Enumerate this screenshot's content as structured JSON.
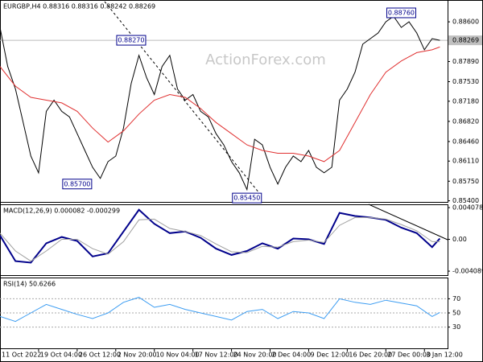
{
  "chart_data": [
    {
      "type": "line",
      "title": "EURGBP,H4 0.88316 0.88316 0.88242 0.88269",
      "watermark": "ActionForex.com",
      "x": [
        0,
        2,
        4,
        6,
        8,
        10,
        12,
        14,
        16,
        18,
        20,
        22,
        24,
        26,
        28,
        30,
        32,
        34,
        36,
        38,
        40,
        42,
        44,
        46,
        48,
        50,
        52,
        54,
        56,
        58,
        60,
        62,
        64,
        66,
        68,
        70,
        72,
        74,
        76,
        78,
        80,
        82,
        84,
        86,
        88,
        90,
        92,
        94,
        96,
        98,
        100,
        102,
        104,
        106,
        108,
        110,
        112,
        114
      ],
      "series": [
        {
          "color": "#000000",
          "values": [
            0.885,
            0.878,
            0.874,
            0.868,
            0.862,
            0.859,
            0.87,
            0.872,
            0.87,
            0.869,
            0.866,
            0.863,
            0.86,
            0.858,
            0.861,
            0.862,
            0.867,
            0.875,
            0.88,
            0.876,
            0.873,
            0.878,
            0.88,
            0.874,
            0.872,
            0.873,
            0.87,
            0.869,
            0.866,
            0.864,
            0.861,
            0.859,
            0.856,
            0.865,
            0.864,
            0.86,
            0.857,
            0.86,
            0.862,
            0.861,
            0.863,
            0.86,
            0.859,
            0.86,
            0.872,
            0.874,
            0.877,
            0.882,
            0.883,
            0.884,
            0.886,
            0.887,
            0.885,
            0.886,
            0.884,
            0.881,
            0.883,
            0.8827
          ]
        },
        {
          "color": "#e03030",
          "x": [
            0,
            4,
            8,
            12,
            16,
            20,
            24,
            28,
            32,
            36,
            40,
            44,
            48,
            52,
            56,
            60,
            64,
            68,
            72,
            76,
            80,
            84,
            88,
            92,
            96,
            100,
            104,
            108,
            112,
            114
          ],
          "values": [
            0.878,
            0.8745,
            0.8725,
            0.872,
            0.8715,
            0.87,
            0.867,
            0.8645,
            0.8665,
            0.8695,
            0.872,
            0.873,
            0.8725,
            0.8705,
            0.868,
            0.866,
            0.864,
            0.863,
            0.8625,
            0.8625,
            0.862,
            0.861,
            0.863,
            0.868,
            0.873,
            0.877,
            0.879,
            0.8805,
            0.881,
            0.8815
          ]
        }
      ],
      "last_price": 0.88269,
      "annotations": [
        {
          "value": 0.8876,
          "label": "0.88760",
          "x": 104
        },
        {
          "value": 0.8827,
          "label": "0.88270",
          "x": 34
        },
        {
          "value": 0.857,
          "label": "0.85700",
          "x": 20
        },
        {
          "value": 0.8545,
          "label": "0.85450",
          "x": 64
        }
      ],
      "xlim": [
        0,
        116
      ],
      "ylim": [
        0.8538,
        0.8899
      ],
      "yticks": [
        {
          "value": 0.886,
          "label": "0.88600"
        },
        {
          "value": 0.8789,
          "label": "0.87890"
        },
        {
          "value": 0.8753,
          "label": "0.87530"
        },
        {
          "value": 0.8718,
          "label": "0.87180"
        },
        {
          "value": 0.8682,
          "label": "0.86820"
        },
        {
          "value": 0.8646,
          "label": "0.86460"
        },
        {
          "value": 0.8611,
          "label": "0.86110"
        },
        {
          "value": 0.8575,
          "label": "0.85750"
        },
        {
          "value": 0.854,
          "label": "0.85400"
        }
      ]
    },
    {
      "type": "line",
      "title": "MACD(12,26,9) 0.000082 -0.000299",
      "x": [
        0,
        4,
        8,
        12,
        16,
        20,
        24,
        28,
        32,
        36,
        40,
        44,
        48,
        52,
        56,
        60,
        64,
        68,
        72,
        76,
        80,
        84,
        88,
        92,
        96,
        100,
        104,
        108,
        112,
        114
      ],
      "series": [
        {
          "color": "#00008b",
          "values": [
            0.0005,
            -0.0028,
            -0.003,
            -0.0005,
            0.0003,
            -0.0002,
            -0.0022,
            -0.0018,
            0.001,
            0.0038,
            0.002,
            0.0008,
            0.001,
            0.0002,
            -0.0012,
            -0.002,
            -0.0015,
            -0.0005,
            -0.0012,
            0.0001,
            0.0,
            -0.0006,
            0.0034,
            0.003,
            0.0028,
            0.0025,
            0.0015,
            0.0008,
            -0.001,
            0.0001
          ]
        },
        {
          "color": "#a0a0a0",
          "values": [
            0.0008,
            -0.0015,
            -0.0028,
            -0.0015,
            0.0,
            0.0,
            -0.0012,
            -0.0019,
            -0.0003,
            0.0025,
            0.0026,
            0.0014,
            0.001,
            0.0005,
            -0.0006,
            -0.0016,
            -0.0017,
            -0.0009,
            -0.001,
            -0.0003,
            -0.0001,
            -0.0004,
            0.0018,
            0.0028,
            0.0028,
            0.0026,
            0.0019,
            0.0011,
            -0.0003,
            -0.0003
          ]
        }
      ],
      "xlim": [
        0,
        116
      ],
      "ylim": [
        -0.0046,
        0.0045
      ],
      "yticks": [
        0.004078,
        {
          "value": 0,
          "label": "0.00"
        },
        -0.004089
      ]
    },
    {
      "type": "line",
      "title": "RSI(14) 50.6266",
      "x": [
        0,
        4,
        8,
        12,
        16,
        20,
        24,
        28,
        32,
        36,
        40,
        44,
        48,
        52,
        56,
        60,
        64,
        68,
        72,
        76,
        80,
        84,
        88,
        92,
        96,
        100,
        104,
        108,
        112,
        114
      ],
      "series": [
        {
          "color": "#3d9df2",
          "values": [
            45,
            38,
            50,
            62,
            55,
            48,
            42,
            50,
            65,
            72,
            58,
            62,
            55,
            50,
            45,
            40,
            52,
            55,
            42,
            52,
            50,
            42,
            70,
            65,
            62,
            68,
            64,
            60,
            45,
            50.6266
          ]
        }
      ],
      "xlim": [
        0,
        116
      ],
      "ylim": [
        0,
        100
      ],
      "yticks": [
        30,
        50,
        70
      ],
      "grid": true,
      "xticks": [
        {
          "value": 0,
          "label": "11 Oct 2022"
        },
        {
          "value": 10,
          "label": "19 Oct 04:00"
        },
        {
          "value": 20,
          "label": "26 Oct 12:00"
        },
        {
          "value": 30,
          "label": "2 Nov 20:00"
        },
        {
          "value": 40,
          "label": "10 Nov 04:00"
        },
        {
          "value": 50,
          "label": "17 Nov 12:00"
        },
        {
          "value": 60,
          "label": "24 Nov 20:00"
        },
        {
          "value": 70,
          "label": "2 Dec 04:00"
        },
        {
          "value": 80,
          "label": "9 Dec 12:00"
        },
        {
          "value": 90,
          "label": "16 Dec 20:00"
        },
        {
          "value": 100,
          "label": "27 Dec 00:00"
        },
        {
          "value": 110,
          "label": "3 Jan 12:00"
        }
      ]
    }
  ]
}
